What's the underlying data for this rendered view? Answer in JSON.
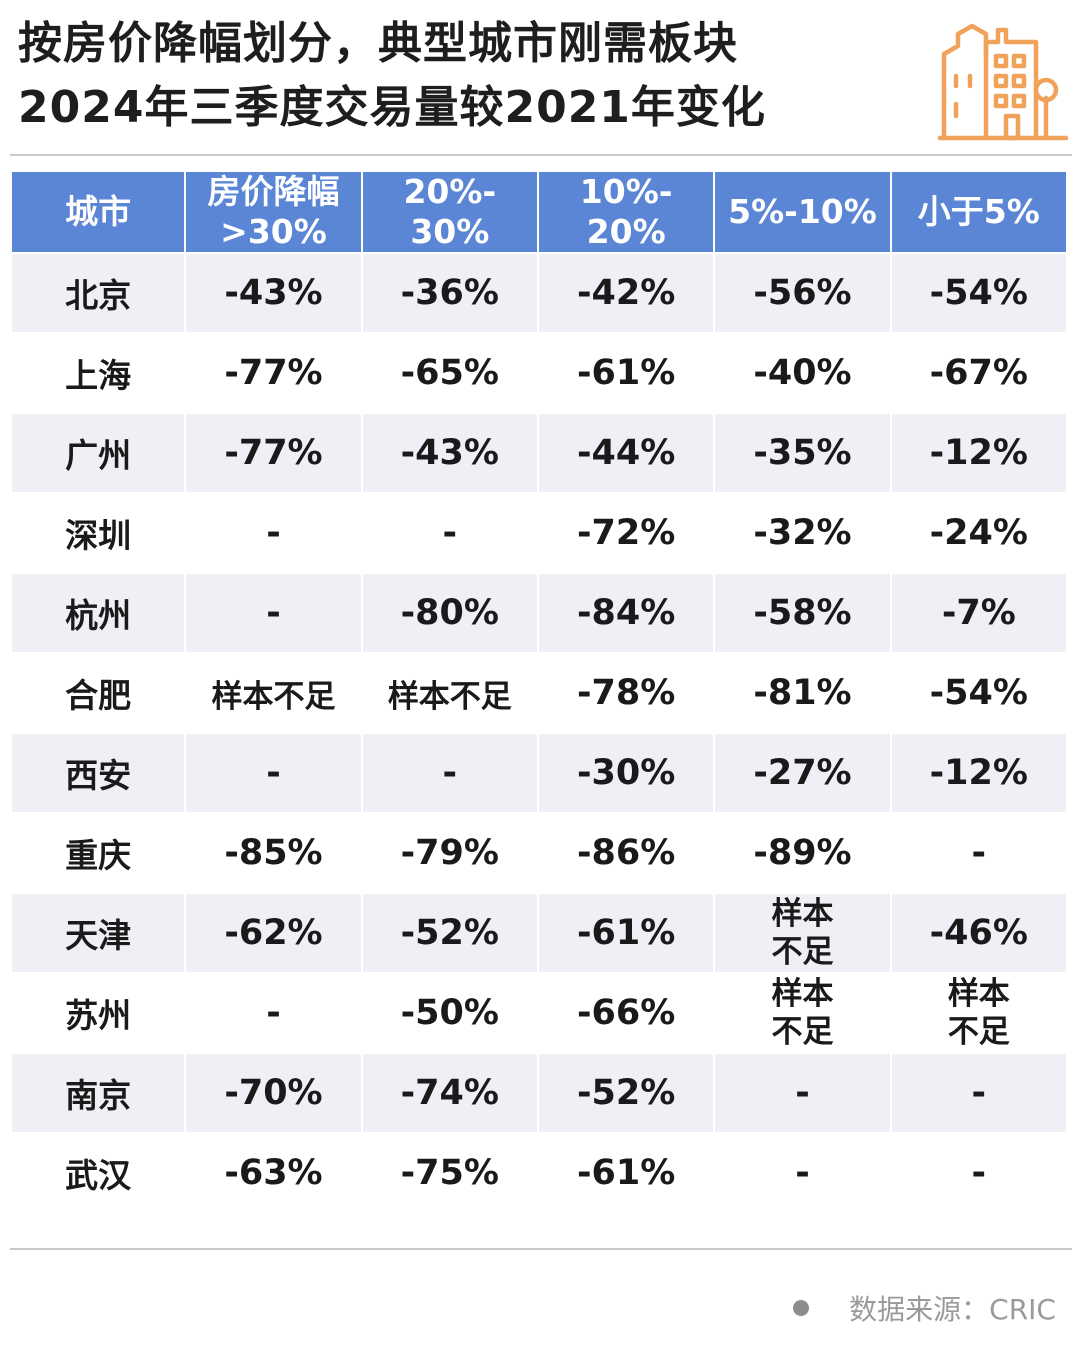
{
  "title": {
    "line1": "按房价降幅划分，典型城市刚需板块",
    "line2": "2024年三季度交易量较2021年变化"
  },
  "header_icon": "city-buildings-icon",
  "colors": {
    "header_bg": "#5b86d6",
    "row_alt_bg": "#eef0f5",
    "icon_orange": "#f0a15a"
  },
  "source": {
    "label": "数据来源：CRIC"
  },
  "chart_data": {
    "type": "table",
    "columns": [
      {
        "l1": "城市",
        "l2": ""
      },
      {
        "l1": "房价降幅",
        "l2": ">30%"
      },
      {
        "l1": "20%-",
        "l2": "30%"
      },
      {
        "l1": "10%-",
        "l2": "20%"
      },
      {
        "l1": "5%-10%",
        "l2": ""
      },
      {
        "l1": "小于5%",
        "l2": ""
      }
    ],
    "rows": [
      [
        "北京",
        "-43%",
        "-36%",
        "-42%",
        "-56%",
        "-54%"
      ],
      [
        "上海",
        "-77%",
        "-65%",
        "-61%",
        "-40%",
        "-67%"
      ],
      [
        "广州",
        "-77%",
        "-43%",
        "-44%",
        "-35%",
        "-12%"
      ],
      [
        "深圳",
        "-",
        "-",
        "-72%",
        "-32%",
        "-24%"
      ],
      [
        "杭州",
        "-",
        "-80%",
        "-84%",
        "-58%",
        "-7%"
      ],
      [
        "合肥",
        "样本不足",
        "样本不足",
        "-78%",
        "-81%",
        "-54%"
      ],
      [
        "西安",
        "-",
        "-",
        "-30%",
        "-27%",
        "-12%"
      ],
      [
        "重庆",
        "-85%",
        "-79%",
        "-86%",
        "-89%",
        "-"
      ],
      [
        "天津",
        "-62%",
        "-52%",
        "-61%",
        "样本不足",
        "-46%"
      ],
      [
        "苏州",
        "-",
        "-50%",
        "-66%",
        "样本不足",
        "样本不足"
      ],
      [
        "南京",
        "-70%",
        "-74%",
        "-52%",
        "-",
        "-"
      ],
      [
        "武汉",
        "-63%",
        "-75%",
        "-61%",
        "-",
        "-"
      ]
    ]
  }
}
